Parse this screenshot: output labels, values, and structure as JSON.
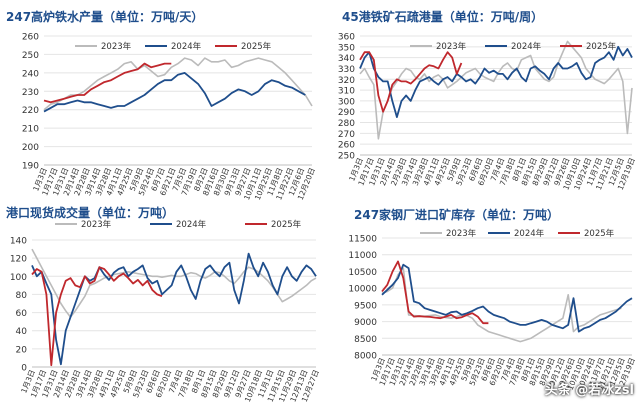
{
  "watermark": {
    "text": "头条 @若冰zsl"
  },
  "colors": {
    "2023": "#bbbbbb",
    "2024": "#1f4e8c",
    "2025": "#c0282d",
    "title": "#1f4e8c"
  },
  "chart_data": [
    {
      "id": "p1",
      "type": "line",
      "title": "247高炉铁水产量（单位：万吨/天）",
      "ylim": [
        190,
        260
      ],
      "yticks": [
        190,
        200,
        210,
        220,
        230,
        240,
        250,
        260
      ],
      "xticks": [
        "1月3日",
        "1月17日",
        "1月31日",
        "2月14日",
        "2月28日",
        "3月14日",
        "3月28日",
        "4月11日",
        "4月25日",
        "5月9日",
        "5月24日",
        "6月7日",
        "6月21日",
        "7月5日",
        "7月19日",
        "8月2日",
        "8月16日",
        "8月30日",
        "9月13日",
        "9月27日",
        "10月11日",
        "10月25日",
        "11月8日",
        "11月22日",
        "12月6日",
        "12月20日"
      ],
      "grid": true,
      "legend": "top",
      "series": [
        {
          "name": "2023年",
          "color": "#bbbbbb",
          "start": 0,
          "values": [
            220,
            223,
            224,
            226,
            228,
            228,
            230,
            233,
            236,
            238,
            240,
            242,
            245,
            246,
            242,
            244,
            241,
            238,
            239,
            243,
            245,
            248,
            247,
            244,
            248,
            246,
            246,
            247,
            243,
            244,
            246,
            247,
            248,
            247,
            246,
            243,
            240,
            236,
            232,
            228,
            222
          ]
        },
        {
          "name": "2024年",
          "color": "#1f4e8c",
          "start": 0,
          "values": [
            219,
            221,
            223,
            223,
            224,
            225,
            224,
            224,
            223,
            222,
            221,
            222,
            222,
            224,
            226,
            228,
            231,
            234,
            236,
            236,
            239,
            240,
            237,
            234,
            229,
            222,
            224,
            226,
            229,
            231,
            230,
            228,
            230,
            234,
            236,
            235,
            233,
            232,
            230,
            228
          ]
        },
        {
          "name": "2025年",
          "color": "#c0282d",
          "start": 0,
          "values": [
            225,
            224,
            225,
            226,
            227,
            228,
            228,
            231,
            233,
            235,
            236,
            238,
            240,
            241,
            242,
            245,
            243,
            244,
            245,
            245
          ]
        }
      ]
    },
    {
      "id": "p2",
      "type": "line",
      "title": "45港铁矿石疏港量（单位：万吨/周）",
      "ylim": [
        250,
        360
      ],
      "yticks": [
        250,
        260,
        270,
        280,
        290,
        300,
        310,
        320,
        330,
        340,
        350,
        360
      ],
      "xticks": [
        "1月3日",
        "1月17日",
        "1月31日",
        "2月14日",
        "2月28日",
        "3月14日",
        "3月28日",
        "4月11日",
        "4月25日",
        "5月9日",
        "5月23日",
        "6月6日",
        "6月20日",
        "7月4日",
        "7月18日",
        "8月1日",
        "8月15日",
        "8月29日",
        "9月12日",
        "9月26日",
        "10月10日",
        "10月24日",
        "11月7日",
        "11月21日",
        "12月5日",
        "12月19日"
      ],
      "grid": true,
      "legend": "top",
      "series": [
        {
          "name": "2023年",
          "color": "#bbbbbb",
          "start": 0,
          "values": [
            325,
            330,
            322,
            315,
            265,
            290,
            300,
            312,
            318,
            325,
            330,
            328,
            322,
            320,
            325,
            318,
            322,
            324,
            320,
            312,
            315,
            318,
            322,
            326,
            328,
            330,
            325,
            322,
            320,
            318,
            326,
            332,
            335,
            330,
            328,
            338,
            340,
            342,
            330,
            325,
            320,
            318,
            322,
            335,
            345,
            355,
            350,
            345,
            340,
            330,
            325,
            320,
            318,
            316,
            320,
            325,
            330,
            318,
            270,
            312
          ]
        },
        {
          "name": "2024年",
          "color": "#1f4e8c",
          "start": 0,
          "values": [
            330,
            340,
            345,
            330,
            322,
            318,
            318,
            300,
            285,
            300,
            305,
            300,
            310,
            318,
            320,
            322,
            318,
            315,
            320,
            322,
            318,
            325,
            322,
            318,
            320,
            316,
            322,
            330,
            326,
            328,
            325,
            325,
            320,
            326,
            330,
            322,
            318,
            330,
            332,
            328,
            325,
            320,
            330,
            335,
            330,
            330,
            332,
            335,
            326,
            320,
            322,
            335,
            338,
            340,
            345,
            338,
            350,
            342,
            348,
            340
          ]
        },
        {
          "name": "2025年",
          "color": "#c0282d",
          "start": 0,
          "values": [
            338,
            345,
            345,
            338,
            305,
            290,
            300,
            315,
            320,
            318,
            318,
            316,
            320,
            325,
            330,
            333,
            332,
            330,
            338,
            345,
            340,
            325,
            335
          ]
        }
      ]
    },
    {
      "id": "p3",
      "type": "line",
      "title": "港口现货成交量（单位：万吨）",
      "ylim": [
        0,
        140
      ],
      "yticks": [
        0,
        20,
        40,
        60,
        80,
        100,
        120,
        140
      ],
      "xticks": [
        "1月3日",
        "1月17日",
        "1月31日",
        "2月14日",
        "2月28日",
        "3月14日",
        "3月28日",
        "4月11日",
        "4月25日",
        "5月9日",
        "5月23日",
        "6月6日",
        "6月20日",
        "7月4日",
        "7月18日",
        "8月1日",
        "8月15日",
        "8月29日",
        "9月12日",
        "9月27日",
        "10月18日",
        "11月1日",
        "11月15日",
        "11月29日",
        "12月13日",
        "12月27日"
      ],
      "grid": true,
      "legend": "top",
      "series": [
        {
          "name": "2023年",
          "color": "#bbbbbb",
          "start": 0,
          "values": [
            130,
            120,
            110,
            100,
            90,
            80,
            70,
            62,
            55,
            62,
            70,
            78,
            90,
            92,
            95,
            98,
            100,
            102,
            103,
            104,
            105,
            104,
            103,
            102,
            101,
            100,
            100,
            99,
            100,
            101,
            100,
            100,
            102,
            104,
            103,
            100,
            98,
            101,
            105,
            104,
            100,
            95,
            92,
            98,
            105,
            110,
            108,
            105,
            100,
            95,
            88,
            80,
            72,
            75,
            78,
            82,
            86,
            90,
            95,
            98
          ]
        },
        {
          "name": "2024年",
          "color": "#1f4e8c",
          "start": 0,
          "values": [
            112,
            100,
            105,
            92,
            80,
            30,
            3,
            40,
            55,
            70,
            85,
            100,
            95,
            98,
            110,
            102,
            96,
            104,
            108,
            110,
            100,
            105,
            108,
            112,
            98,
            92,
            95,
            80,
            85,
            90,
            105,
            112,
            100,
            85,
            75,
            95,
            108,
            112,
            105,
            100,
            110,
            115,
            85,
            70,
            95,
            125,
            110,
            100,
            115,
            105,
            90,
            80,
            100,
            110,
            100,
            95,
            105,
            112,
            108,
            100
          ]
        },
        {
          "name": "2025年",
          "color": "#c0282d",
          "start": 0,
          "values": [
            102,
            108,
            105,
            80,
            2,
            60,
            80,
            95,
            98,
            90,
            88,
            100,
            92,
            95,
            110,
            108,
            102,
            95,
            100,
            103,
            98,
            92,
            96,
            90,
            95,
            85,
            80,
            78
          ]
        }
      ]
    },
    {
      "id": "p4",
      "type": "line",
      "title": "247家钢厂进口矿库存（单位：万吨）",
      "ylim": [
        8000,
        11500
      ],
      "yticks": [
        8000,
        8500,
        9000,
        9500,
        10000,
        10500,
        11000,
        11500
      ],
      "xticks": [
        "1月3日",
        "1月17日",
        "1月31日",
        "2月14日",
        "2月28日",
        "3月14日",
        "3月28日",
        "4月11日",
        "4月25日",
        "5月9日",
        "5月23日",
        "6月6日",
        "6月20日",
        "7月4日",
        "7月18日",
        "8月1日",
        "8月15日",
        "8月29日",
        "9月12日",
        "9月26日",
        "10月10日",
        "10月24日",
        "11月7日",
        "11月21日",
        "12月5日",
        "12月19日"
      ],
      "grid": true,
      "legend": "top",
      "series": [
        {
          "name": "2023年",
          "color": "#bbbbbb",
          "start": 0,
          "values": [
            9850,
            9900,
            10000,
            10400,
            10600,
            9200,
            9180,
            9170,
            9160,
            9180,
            9200,
            9150,
            9120,
            9100,
            9150,
            9200,
            9180,
            9100,
            8900,
            8800,
            8700,
            8650,
            8600,
            8550,
            8500,
            8450,
            8400,
            8450,
            8500,
            8600,
            8700,
            8800,
            8900,
            9000,
            9100,
            9800,
            8700,
            8850,
            8900,
            9000,
            9100,
            9200,
            9250,
            9300,
            9350,
            9400
          ]
        },
        {
          "name": "2024年",
          "color": "#1f4e8c",
          "start": 0,
          "values": [
            9800,
            9950,
            10100,
            10300,
            10700,
            10600,
            9600,
            9550,
            9400,
            9350,
            9300,
            9250,
            9200,
            9280,
            9300,
            9200,
            9250,
            9320,
            9400,
            9450,
            9300,
            9200,
            9150,
            9100,
            9000,
            8950,
            8900,
            8900,
            8950,
            9000,
            9050,
            9000,
            8900,
            8850,
            8800,
            8900,
            9700,
            8700,
            8800,
            8850,
            8950,
            9050,
            9100,
            9200,
            9300,
            9450,
            9600,
            9700
          ]
        },
        {
          "name": "2025年",
          "color": "#c0282d",
          "start": 0,
          "values": [
            9900,
            10100,
            10500,
            10800,
            10300,
            9300,
            9150,
            9160,
            9150,
            9140,
            9120,
            9100,
            9150,
            9200,
            9100,
            9130,
            9200,
            9250,
            9150,
            8950,
            8950
          ]
        }
      ]
    }
  ]
}
